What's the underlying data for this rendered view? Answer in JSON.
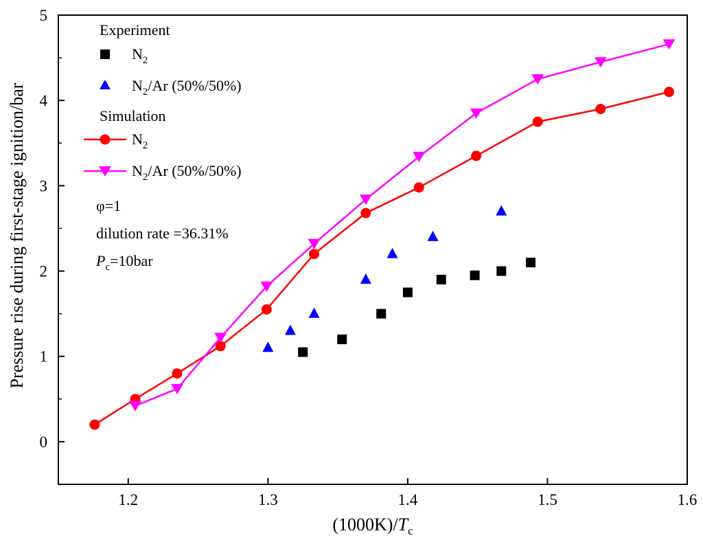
{
  "chart_data": {
    "type": "line",
    "xlabel": "(1000K)/T",
    "xlabel_parts": {
      "prefix": "(1000K)/",
      "var": "T",
      "sub": "c"
    },
    "ylabel": "Pressure rise during first-stage ignition/bar",
    "xlim": [
      1.15,
      1.6
    ],
    "ylim": [
      -0.5,
      5
    ],
    "xticks": [
      "1.2",
      "1.3",
      "1.4",
      "1.5",
      "1.6"
    ],
    "yticks": [
      "0",
      "1",
      "2",
      "3",
      "4",
      "5"
    ],
    "legend": {
      "experiment_header": "Experiment",
      "simulation_header": "Simulation",
      "n2_base": "N",
      "n2_sub": "2",
      "mix_suffix": "/Ar (50%/50%)"
    },
    "annotations": {
      "phi": "φ=1",
      "dilution": "dilution rate =36.31%",
      "pc_var": "P",
      "pc_sub": "c",
      "pc_value": "=10bar"
    },
    "series": [
      {
        "name": "Experiment N2",
        "kind": "scatter",
        "marker": "square",
        "color": "#000000",
        "x": [
          1.325,
          1.353,
          1.381,
          1.4,
          1.424,
          1.448,
          1.467,
          1.488
        ],
        "y": [
          1.05,
          1.2,
          1.5,
          1.75,
          1.9,
          1.95,
          2.0,
          2.1
        ]
      },
      {
        "name": "Experiment N2/Ar (50%/50%)",
        "kind": "scatter",
        "marker": "triangle-up",
        "color": "#0000ff",
        "x": [
          1.3,
          1.316,
          1.333,
          1.37,
          1.389,
          1.418,
          1.467
        ],
        "y": [
          1.1,
          1.3,
          1.5,
          1.9,
          2.2,
          2.4,
          2.7
        ]
      },
      {
        "name": "Simulation N2",
        "kind": "line",
        "marker": "circle",
        "color": "#ff0000",
        "x": [
          1.176,
          1.205,
          1.235,
          1.266,
          1.299,
          1.333,
          1.37,
          1.408,
          1.449,
          1.493,
          1.538,
          1.587
        ],
        "y": [
          0.2,
          0.5,
          0.8,
          1.12,
          1.55,
          2.2,
          2.68,
          2.98,
          3.35,
          3.75,
          3.9,
          4.1
        ]
      },
      {
        "name": "Simulation N2/Ar (50%/50%)",
        "kind": "line",
        "marker": "triangle-down",
        "color": "#ff00ff",
        "x": [
          1.205,
          1.235,
          1.266,
          1.299,
          1.333,
          1.37,
          1.408,
          1.449,
          1.493,
          1.538,
          1.587
        ],
        "y": [
          0.42,
          0.62,
          1.22,
          1.82,
          2.32,
          2.84,
          3.34,
          3.85,
          4.25,
          4.45,
          4.66
        ]
      }
    ]
  }
}
